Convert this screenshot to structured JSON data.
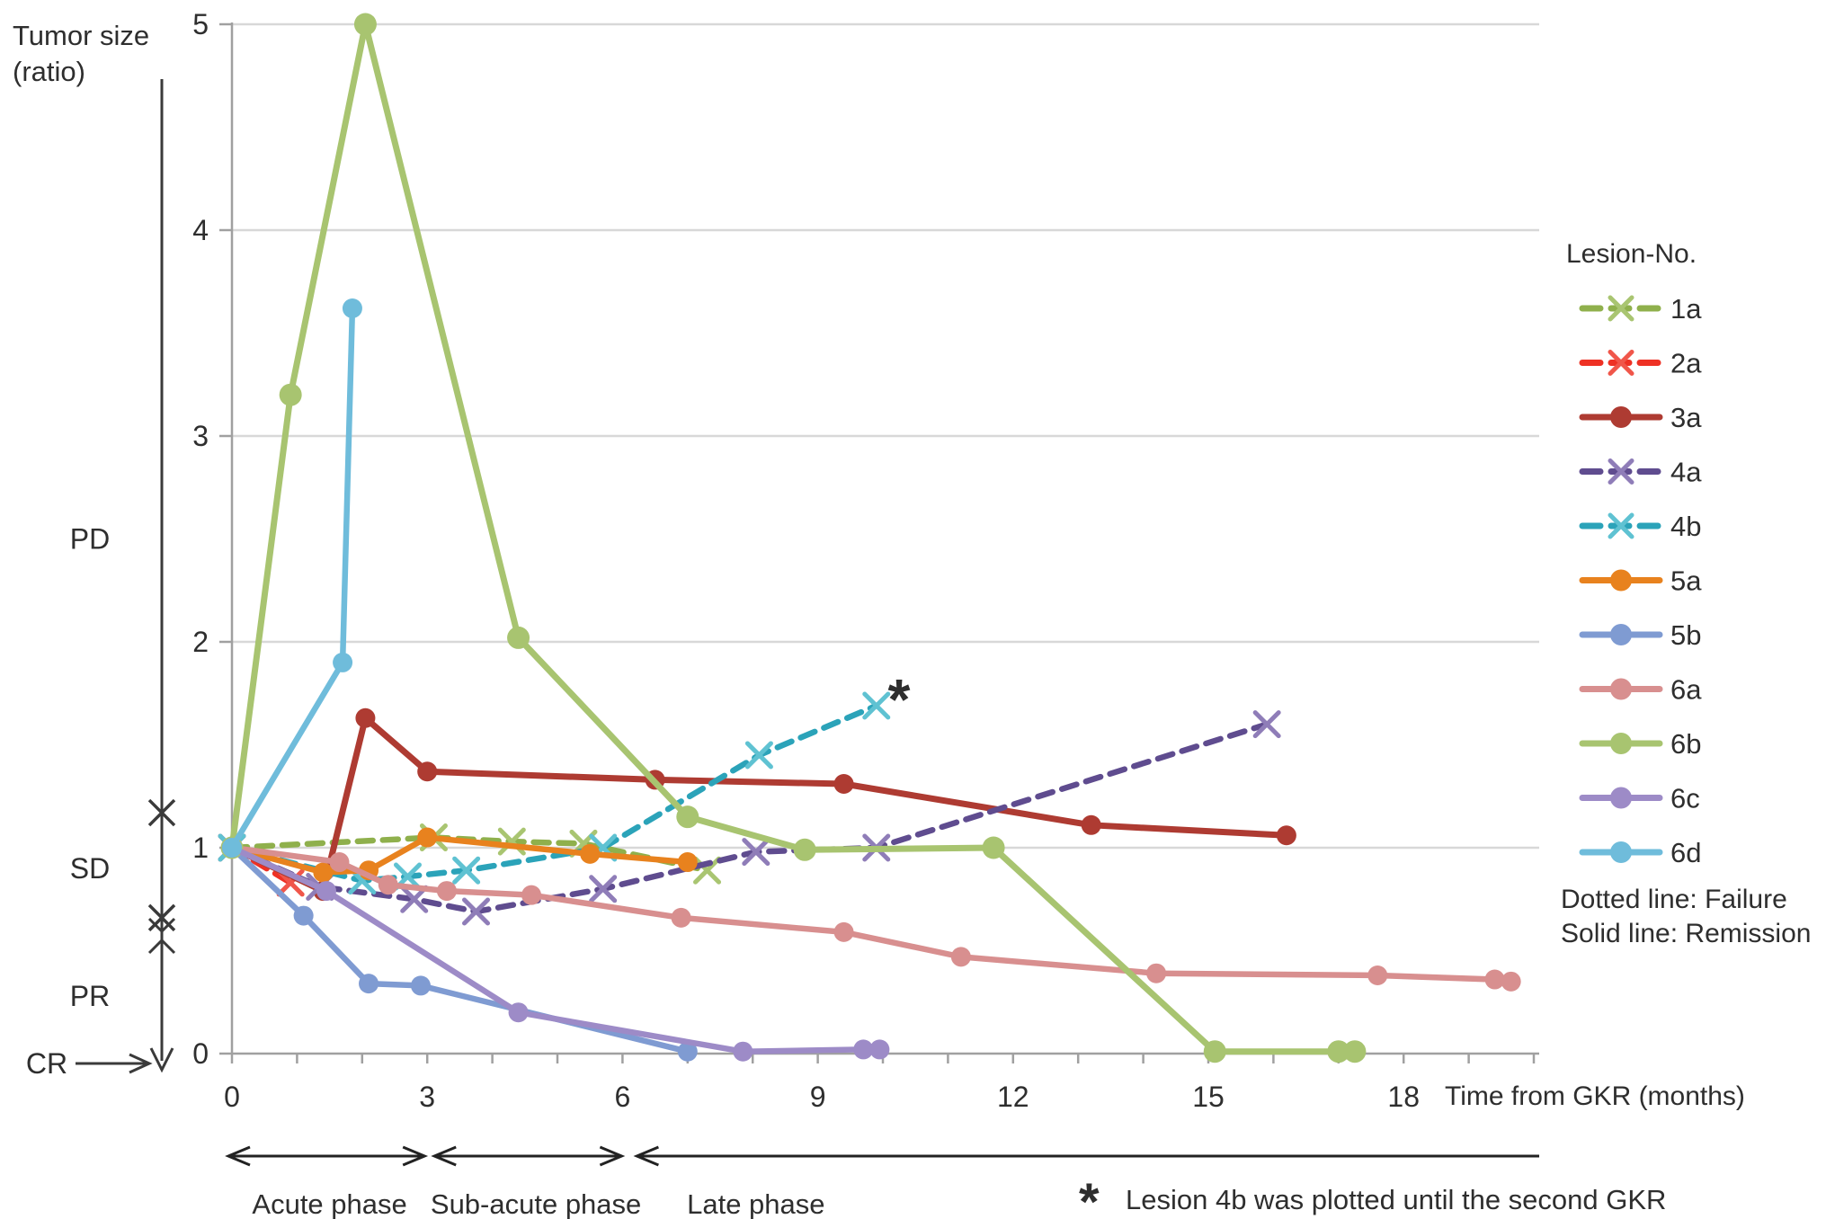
{
  "labels": {
    "y_axis_title_1": "Tumor size",
    "y_axis_title_2": "(ratio)",
    "x_axis_title": "Time from GKR (months)",
    "legend_title": "Lesion-No.",
    "legend_note_dotted": "Dotted line: Failure",
    "legend_note_solid": "Solid line: Remission",
    "annotation_symbol": "*",
    "footnote_symbol": "*",
    "footnote_text": "Lesion 4b was plotted until the second GKR"
  },
  "chart_data": {
    "type": "line",
    "title": "",
    "xlabel": "Time from GKR (months)",
    "ylabel": "Tumor size (ratio)",
    "x_axis": {
      "min": 0,
      "max": 20.3,
      "labeled_ticks": [
        0,
        3,
        6,
        9,
        12,
        15,
        18
      ],
      "minor_tick_every": 1,
      "minor_tick_count": 21
    },
    "y_axis": {
      "min": 0,
      "max": 5,
      "ticks": [
        0,
        1,
        2,
        3,
        4,
        5
      ]
    },
    "grid": "horizontal",
    "colors": {
      "gridline": "#d8d8d8",
      "axis": "#a0a0a0",
      "annotation": "#1a1a1a"
    },
    "response_zones": {
      "boundary_values": [
        1.17,
        0.66
      ],
      "labels": [
        {
          "text": "PD",
          "value": 2.5
        },
        {
          "text": "SD",
          "value": 0.9
        },
        {
          "text": "PR",
          "value": 0.28
        },
        {
          "text": "CR",
          "value": 0.0
        }
      ]
    },
    "phases": [
      {
        "label": "Acute phase",
        "from": 0,
        "to": 3,
        "label_center": 1.5
      },
      {
        "label": "Sub-acute phase",
        "from": 3,
        "to": 6,
        "label_center": 4.67
      },
      {
        "label": "Late phase",
        "from": 6,
        "to": 20.1,
        "label_center": 8.05
      }
    ],
    "annotation": {
      "symbol": "*",
      "month": 10.2,
      "value": 1.84
    },
    "legend_position": "right",
    "series": [
      {
        "name": "1a",
        "outcome": "Failure",
        "line": "dashed",
        "marker": "x",
        "color": "#8fb04c",
        "marker_color": "#a9c571",
        "points": [
          [
            0,
            1
          ],
          [
            3.1,
            1.05
          ],
          [
            4.3,
            1.03
          ],
          [
            5.4,
            1.02
          ],
          [
            7.3,
            0.89
          ]
        ]
      },
      {
        "name": "2a",
        "outcome": "Failure",
        "line": "dashed",
        "marker": "x",
        "color": "#ee3124",
        "marker_color": "#f0564a",
        "points": [
          [
            0,
            1
          ],
          [
            0.9,
            0.83
          ]
        ]
      },
      {
        "name": "3a",
        "outcome": "Remission",
        "line": "solid",
        "marker": "circle",
        "color": "#ae3b32",
        "marker_color": "#ae3b32",
        "points": [
          [
            0,
            1
          ],
          [
            1.4,
            0.79
          ],
          [
            2.05,
            1.63
          ],
          [
            3,
            1.37
          ],
          [
            6.5,
            1.33
          ],
          [
            9.4,
            1.31
          ],
          [
            13.2,
            1.11
          ],
          [
            16.2,
            1.06
          ]
        ]
      },
      {
        "name": "4a",
        "outcome": "Failure",
        "line": "dashed",
        "marker": "x",
        "color": "#5f4c8f",
        "marker_color": "#8f7db8",
        "points": [
          [
            0,
            1
          ],
          [
            1.35,
            0.81
          ],
          [
            2.8,
            0.75
          ],
          [
            3.75,
            0.69
          ],
          [
            5.7,
            0.8
          ],
          [
            8.05,
            0.98
          ],
          [
            9.9,
            1.0
          ],
          [
            15.9,
            1.6
          ]
        ]
      },
      {
        "name": "4b",
        "outcome": "Failure",
        "line": "dashed",
        "marker": "x",
        "color": "#2ba3b9",
        "marker_color": "#5fc2d2",
        "points": [
          [
            0,
            1
          ],
          [
            2.0,
            0.84
          ],
          [
            2.7,
            0.86
          ],
          [
            3.6,
            0.89
          ],
          [
            5.7,
            1.0
          ],
          [
            8.1,
            1.45
          ],
          [
            9.9,
            1.69
          ]
        ]
      },
      {
        "name": "5a",
        "outcome": "Remission",
        "line": "solid",
        "marker": "circle",
        "color": "#e8821e",
        "marker_color": "#e8821e",
        "points": [
          [
            0,
            1
          ],
          [
            1.4,
            0.88
          ],
          [
            2.1,
            0.89
          ],
          [
            3,
            1.05
          ],
          [
            5.5,
            0.97
          ],
          [
            7,
            0.93
          ]
        ]
      },
      {
        "name": "5b",
        "outcome": "Remission",
        "line": "solid",
        "marker": "circle",
        "color": "#7f9bd2",
        "marker_color": "#7f9bd2",
        "points": [
          [
            0,
            1
          ],
          [
            1.1,
            0.67
          ],
          [
            2.1,
            0.34
          ],
          [
            2.9,
            0.33
          ],
          [
            7,
            0.01
          ]
        ]
      },
      {
        "name": "6a",
        "outcome": "Remission",
        "line": "solid",
        "marker": "circle",
        "color": "#d88f8f",
        "marker_color": "#d88f8f",
        "points": [
          [
            0,
            1
          ],
          [
            1.65,
            0.93
          ],
          [
            2.4,
            0.82
          ],
          [
            3.3,
            0.79
          ],
          [
            4.6,
            0.77
          ],
          [
            6.9,
            0.66
          ],
          [
            9.4,
            0.59
          ],
          [
            11.2,
            0.47
          ],
          [
            14.2,
            0.39
          ],
          [
            17.6,
            0.38
          ],
          [
            19.4,
            0.36
          ],
          [
            19.65,
            0.35
          ]
        ]
      },
      {
        "name": "6b",
        "outcome": "Remission",
        "line": "solid",
        "marker": "circle",
        "color": "#a8c470",
        "marker_color": "#a8c470",
        "points": [
          [
            0,
            1
          ],
          [
            0.9,
            3.2
          ],
          [
            2.05,
            5.0
          ],
          [
            4.4,
            2.02
          ],
          [
            7,
            1.15
          ],
          [
            8.8,
            0.99
          ],
          [
            11.7,
            1.0
          ],
          [
            15.1,
            0.01
          ],
          [
            17,
            0.01
          ],
          [
            17.25,
            0.01
          ]
        ]
      },
      {
        "name": "6c",
        "outcome": "Remission",
        "line": "solid",
        "marker": "circle",
        "color": "#9d8bc7",
        "marker_color": "#9d8bc7",
        "points": [
          [
            0,
            1
          ],
          [
            1.45,
            0.79
          ],
          [
            4.4,
            0.2
          ],
          [
            7.85,
            0.01
          ],
          [
            9.7,
            0.02
          ],
          [
            9.95,
            0.02
          ]
        ]
      },
      {
        "name": "6d",
        "outcome": "Remission",
        "line": "solid",
        "marker": "circle",
        "color": "#6fbcdb",
        "marker_color": "#6fbcdb",
        "points": [
          [
            0,
            1
          ],
          [
            1.7,
            1.9
          ],
          [
            1.85,
            3.62
          ]
        ]
      }
    ]
  }
}
